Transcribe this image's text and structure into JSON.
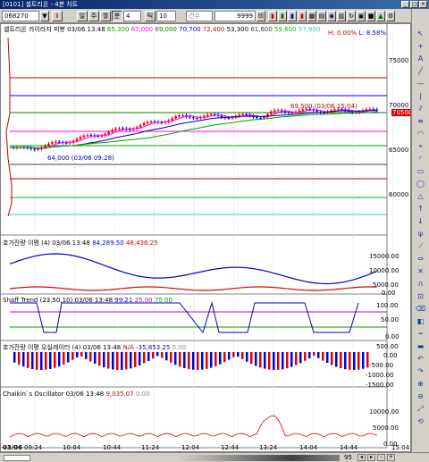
{
  "window": {
    "title": "[0101] 셀트리온 - 4분 차트",
    "controls": [
      "_",
      "□",
      "×"
    ]
  },
  "toolbar": {
    "code": "068270",
    "period_buttons": [
      "일",
      "주",
      "월",
      "분"
    ],
    "minute_value": "4",
    "tick_label": "틱",
    "tick_value": "10",
    "count_label": "건수",
    "count_value": "9999",
    "unit_label": "비"
  },
  "main_chart": {
    "legend_prefix": "셀트리온 카이라지 피봇",
    "legend_time": "03/06 13:48",
    "legend_values": [
      {
        "text": "65,300",
        "color": "#00a000"
      },
      {
        "text": "67,000",
        "color": "#ff00ff"
      },
      {
        "text": "69,000",
        "color": "#008000"
      },
      {
        "text": "70,700",
        "color": "#0000c0"
      },
      {
        "text": "72,400",
        "color": "#c00000"
      },
      {
        "text": "53,300",
        "color": "#000000"
      },
      {
        "text": "61,600",
        "color": "#404040"
      },
      {
        "text": "59,600",
        "color": "#20a020"
      },
      {
        "text": "57,900",
        "color": "#40c0c0"
      }
    ],
    "high_low": {
      "h": "H: 0.00%",
      "l": "L: 8.58%"
    },
    "y_labels": [
      "75000",
      "70000",
      "65000",
      "60000"
    ],
    "current_price": "70500",
    "annotation_high": "69,500 (03/06 15:04)",
    "annotation_low": "64,000 (03/06 09:28)"
  },
  "panel_orderbook": {
    "title": "호가잔량 이평",
    "params": "(4)",
    "time": "03/06 13:48",
    "v1": "84,289.50",
    "v2": "48,436.25",
    "y_labels": [
      "15000.00",
      "10000.00",
      "5000.00",
      "0.00"
    ]
  },
  "panel_schaff": {
    "title": "Shaff Trend",
    "params": "(23,50,10)",
    "time": "03/06 13:48",
    "v1": "99.21",
    "v2": "25.00",
    "v3": "75.00",
    "y_labels": [
      "100.00",
      "50.00",
      "0.00"
    ]
  },
  "panel_osc": {
    "title": "호가잔량 이평 오실레이터",
    "params": "(4)",
    "time": "03/06 13:48",
    "v1": "N/A",
    "v2": "-35,853.25",
    "v3": "0.00",
    "y_labels": [
      "500.00",
      "0.00",
      "-500.00",
      "-1000.00",
      "-1500.00"
    ]
  },
  "panel_chaikin": {
    "title": "Chaikin`s Oscillator",
    "time": "03/06 13:48",
    "v1": "9,035.07",
    "v2": "0.00",
    "y_labels": [
      "10000.00",
      "5000.00",
      "0.00"
    ]
  },
  "x_axis": {
    "labels": [
      "03/06",
      "09:24",
      "10:04",
      "10:44",
      "11:24",
      "12:04",
      "12:44",
      "13:24",
      "14:04",
      "14:44",
      "15:04"
    ]
  },
  "statusbar": {
    "zoom": "95"
  },
  "colors": {
    "up": "#ff0000",
    "down": "#0000ff",
    "ma_fast": "#ff00ff",
    "ma_slow": "#0000a0",
    "ma_long": "#00a000"
  }
}
